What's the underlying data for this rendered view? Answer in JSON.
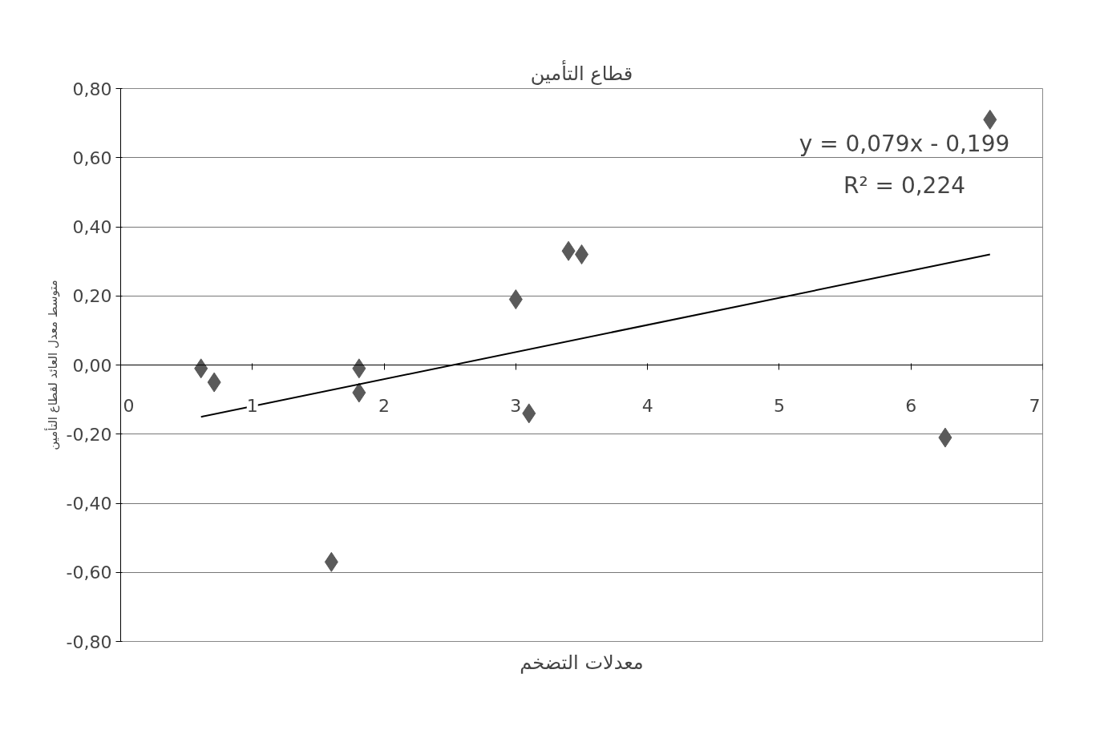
{
  "chart_data": {
    "type": "scatter",
    "title": "قطاع التأمين",
    "xlabel": "معدلات التضخم",
    "ylabel": "متوسط معدل العائد لقطاع التأمين",
    "grid": "y",
    "xlim": [
      0,
      7
    ],
    "xticks": [
      0,
      1,
      2,
      3,
      4,
      5,
      6,
      7
    ],
    "ylim": [
      -0.8,
      0.8
    ],
    "yticks": [
      {
        "value": -0.8,
        "label": "-0,80"
      },
      {
        "value": -0.6,
        "label": "-0,60"
      },
      {
        "value": -0.4,
        "label": "-0,40"
      },
      {
        "value": -0.2,
        "label": "-0,20"
      },
      {
        "value": 0,
        "label": "0,00"
      },
      {
        "value": 0.2,
        "label": "0,20"
      },
      {
        "value": 0.4,
        "label": "0,40"
      },
      {
        "value": 0.6,
        "label": "0,60"
      },
      {
        "value": 0.8,
        "label": "0,80"
      }
    ],
    "series": [
      {
        "marker": "diamond",
        "color": "#5a5a5a",
        "x": [
          0.61,
          0.71,
          1.81,
          1.81,
          1.6,
          3.0,
          3.1,
          3.4,
          3.5,
          6.26,
          6.6
        ],
        "values": [
          -0.01,
          -0.05,
          -0.01,
          -0.08,
          -0.57,
          0.19,
          -0.14,
          0.33,
          0.32,
          -0.21,
          0.71
        ]
      },
      {
        "type": "line",
        "marker": "none",
        "color": "#000000",
        "x": [
          0.61,
          6.6
        ],
        "values": [
          -0.15,
          0.32
        ]
      }
    ],
    "annotations": [
      "y = 0,079x - 0,199",
      "R² = 0,224"
    ]
  }
}
